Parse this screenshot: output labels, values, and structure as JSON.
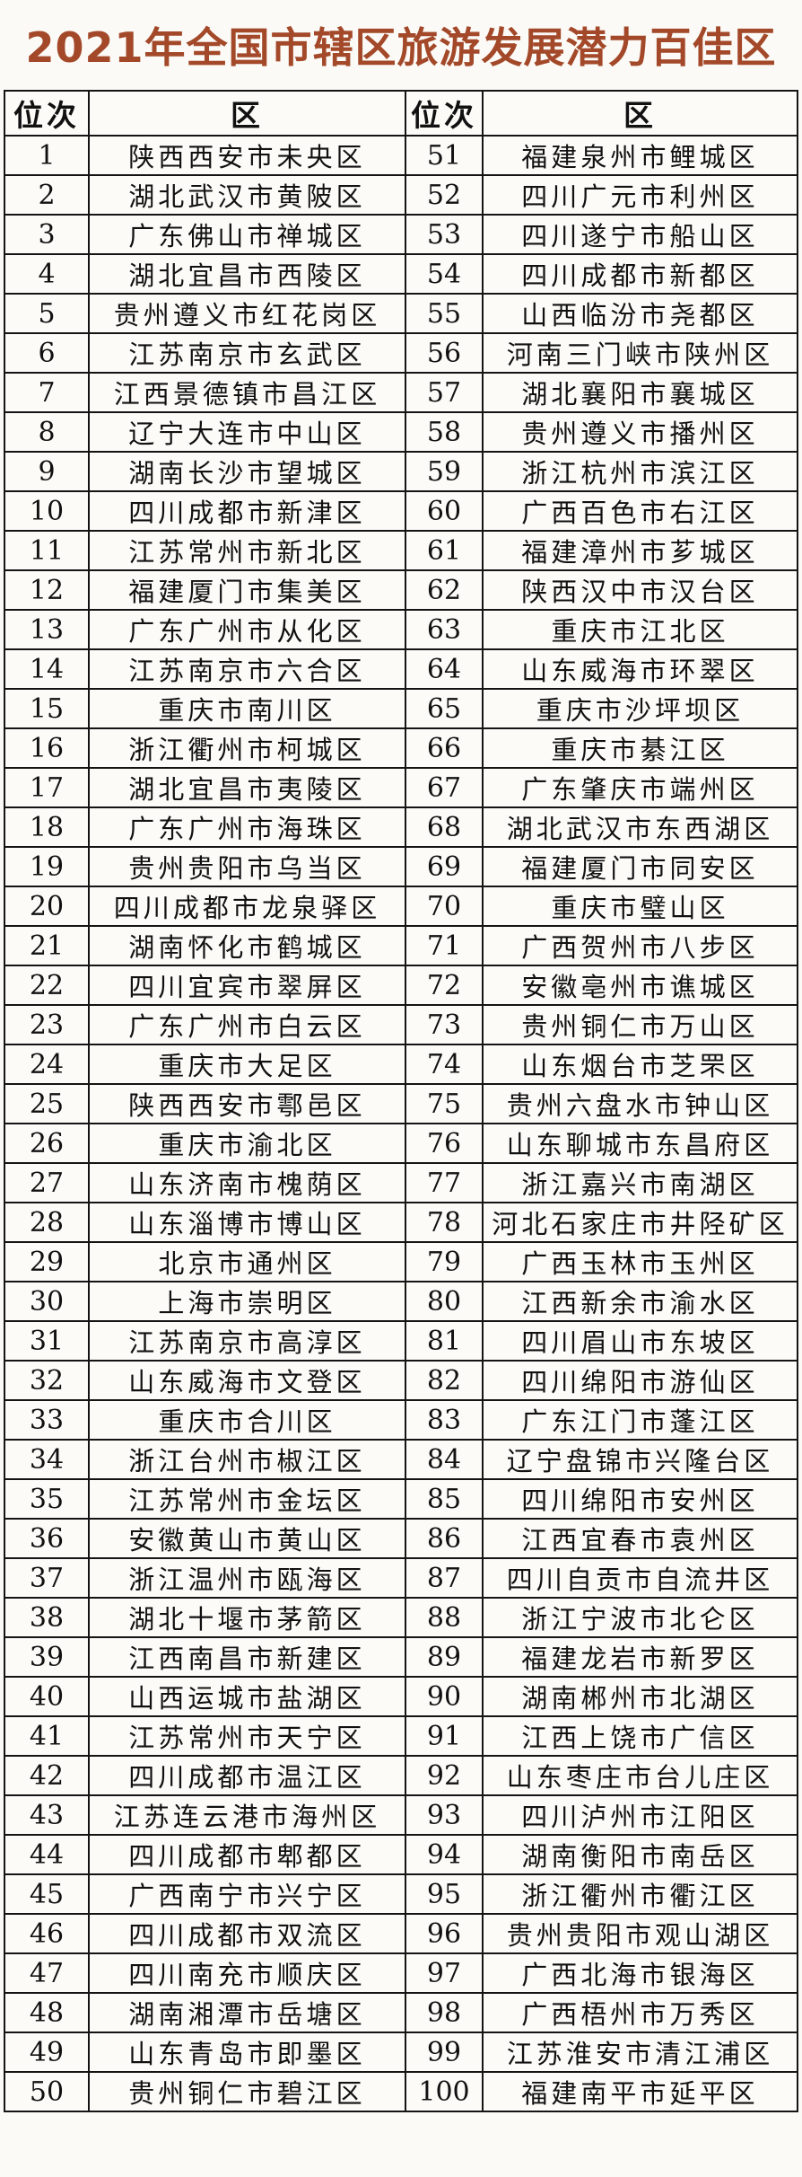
{
  "title": "2021年全国市辖区旅游发展潜力百佳区",
  "colors": {
    "title_text": "#a3492a",
    "border": "#141414",
    "background": "#fbfaf6"
  },
  "table": {
    "headers": [
      "位次",
      "区",
      "位次",
      "区"
    ],
    "rows": [
      {
        "rank_left": "1",
        "district_left": "陕西西安市未央区",
        "rank_right": "51",
        "district_right": "福建泉州市鲤城区"
      },
      {
        "rank_left": "2",
        "district_left": "湖北武汉市黄陂区",
        "rank_right": "52",
        "district_right": "四川广元市利州区"
      },
      {
        "rank_left": "3",
        "district_left": "广东佛山市禅城区",
        "rank_right": "53",
        "district_right": "四川遂宁市船山区"
      },
      {
        "rank_left": "4",
        "district_left": "湖北宜昌市西陵区",
        "rank_right": "54",
        "district_right": "四川成都市新都区"
      },
      {
        "rank_left": "5",
        "district_left": "贵州遵义市红花岗区",
        "rank_right": "55",
        "district_right": "山西临汾市尧都区"
      },
      {
        "rank_left": "6",
        "district_left": "江苏南京市玄武区",
        "rank_right": "56",
        "district_right": "河南三门峡市陕州区"
      },
      {
        "rank_left": "7",
        "district_left": "江西景德镇市昌江区",
        "rank_right": "57",
        "district_right": "湖北襄阳市襄城区"
      },
      {
        "rank_left": "8",
        "district_left": "辽宁大连市中山区",
        "rank_right": "58",
        "district_right": "贵州遵义市播州区"
      },
      {
        "rank_left": "9",
        "district_left": "湖南长沙市望城区",
        "rank_right": "59",
        "district_right": "浙江杭州市滨江区"
      },
      {
        "rank_left": "10",
        "district_left": "四川成都市新津区",
        "rank_right": "60",
        "district_right": "广西百色市右江区"
      },
      {
        "rank_left": "11",
        "district_left": "江苏常州市新北区",
        "rank_right": "61",
        "district_right": "福建漳州市芗城区"
      },
      {
        "rank_left": "12",
        "district_left": "福建厦门市集美区",
        "rank_right": "62",
        "district_right": "陕西汉中市汉台区"
      },
      {
        "rank_left": "13",
        "district_left": "广东广州市从化区",
        "rank_right": "63",
        "district_right": "重庆市江北区"
      },
      {
        "rank_left": "14",
        "district_left": "江苏南京市六合区",
        "rank_right": "64",
        "district_right": "山东威海市环翠区"
      },
      {
        "rank_left": "15",
        "district_left": "重庆市南川区",
        "rank_right": "65",
        "district_right": "重庆市沙坪坝区"
      },
      {
        "rank_left": "16",
        "district_left": "浙江衢州市柯城区",
        "rank_right": "66",
        "district_right": "重庆市綦江区"
      },
      {
        "rank_left": "17",
        "district_left": "湖北宜昌市夷陵区",
        "rank_right": "67",
        "district_right": "广东肇庆市端州区"
      },
      {
        "rank_left": "18",
        "district_left": "广东广州市海珠区",
        "rank_right": "68",
        "district_right": "湖北武汉市东西湖区"
      },
      {
        "rank_left": "19",
        "district_left": "贵州贵阳市乌当区",
        "rank_right": "69",
        "district_right": "福建厦门市同安区"
      },
      {
        "rank_left": "20",
        "district_left": "四川成都市龙泉驿区",
        "rank_right": "70",
        "district_right": "重庆市璧山区"
      },
      {
        "rank_left": "21",
        "district_left": "湖南怀化市鹤城区",
        "rank_right": "71",
        "district_right": "广西贺州市八步区"
      },
      {
        "rank_left": "22",
        "district_left": "四川宜宾市翠屏区",
        "rank_right": "72",
        "district_right": "安徽亳州市谯城区"
      },
      {
        "rank_left": "23",
        "district_left": "广东广州市白云区",
        "rank_right": "73",
        "district_right": "贵州铜仁市万山区"
      },
      {
        "rank_left": "24",
        "district_left": "重庆市大足区",
        "rank_right": "74",
        "district_right": "山东烟台市芝罘区"
      },
      {
        "rank_left": "25",
        "district_left": "陕西西安市鄠邑区",
        "rank_right": "75",
        "district_right": "贵州六盘水市钟山区"
      },
      {
        "rank_left": "26",
        "district_left": "重庆市渝北区",
        "rank_right": "76",
        "district_right": "山东聊城市东昌府区"
      },
      {
        "rank_left": "27",
        "district_left": "山东济南市槐荫区",
        "rank_right": "77",
        "district_right": "浙江嘉兴市南湖区"
      },
      {
        "rank_left": "28",
        "district_left": "山东淄博市博山区",
        "rank_right": "78",
        "district_right": "河北石家庄市井陉矿区"
      },
      {
        "rank_left": "29",
        "district_left": "北京市通州区",
        "rank_right": "79",
        "district_right": "广西玉林市玉州区"
      },
      {
        "rank_left": "30",
        "district_left": "上海市崇明区",
        "rank_right": "80",
        "district_right": "江西新余市渝水区"
      },
      {
        "rank_left": "31",
        "district_left": "江苏南京市高淳区",
        "rank_right": "81",
        "district_right": "四川眉山市东坡区"
      },
      {
        "rank_left": "32",
        "district_left": "山东威海市文登区",
        "rank_right": "82",
        "district_right": "四川绵阳市游仙区"
      },
      {
        "rank_left": "33",
        "district_left": "重庆市合川区",
        "rank_right": "83",
        "district_right": "广东江门市蓬江区"
      },
      {
        "rank_left": "34",
        "district_left": "浙江台州市椒江区",
        "rank_right": "84",
        "district_right": "辽宁盘锦市兴隆台区"
      },
      {
        "rank_left": "35",
        "district_left": "江苏常州市金坛区",
        "rank_right": "85",
        "district_right": "四川绵阳市安州区"
      },
      {
        "rank_left": "36",
        "district_left": "安徽黄山市黄山区",
        "rank_right": "86",
        "district_right": "江西宜春市袁州区"
      },
      {
        "rank_left": "37",
        "district_left": "浙江温州市瓯海区",
        "rank_right": "87",
        "district_right": "四川自贡市自流井区"
      },
      {
        "rank_left": "38",
        "district_left": "湖北十堰市茅箭区",
        "rank_right": "88",
        "district_right": "浙江宁波市北仑区"
      },
      {
        "rank_left": "39",
        "district_left": "江西南昌市新建区",
        "rank_right": "89",
        "district_right": "福建龙岩市新罗区"
      },
      {
        "rank_left": "40",
        "district_left": "山西运城市盐湖区",
        "rank_right": "90",
        "district_right": "湖南郴州市北湖区"
      },
      {
        "rank_left": "41",
        "district_left": "江苏常州市天宁区",
        "rank_right": "91",
        "district_right": "江西上饶市广信区"
      },
      {
        "rank_left": "42",
        "district_left": "四川成都市温江区",
        "rank_right": "92",
        "district_right": "山东枣庄市台儿庄区"
      },
      {
        "rank_left": "43",
        "district_left": "江苏连云港市海州区",
        "rank_right": "93",
        "district_right": "四川泸州市江阳区"
      },
      {
        "rank_left": "44",
        "district_left": "四川成都市郫都区",
        "rank_right": "94",
        "district_right": "湖南衡阳市南岳区"
      },
      {
        "rank_left": "45",
        "district_left": "广西南宁市兴宁区",
        "rank_right": "95",
        "district_right": "浙江衢州市衢江区"
      },
      {
        "rank_left": "46",
        "district_left": "四川成都市双流区",
        "rank_right": "96",
        "district_right": "贵州贵阳市观山湖区"
      },
      {
        "rank_left": "47",
        "district_left": "四川南充市顺庆区",
        "rank_right": "97",
        "district_right": "广西北海市银海区"
      },
      {
        "rank_left": "48",
        "district_left": "湖南湘潭市岳塘区",
        "rank_right": "98",
        "district_right": "广西梧州市万秀区"
      },
      {
        "rank_left": "49",
        "district_left": "山东青岛市即墨区",
        "rank_right": "99",
        "district_right": "江苏淮安市清江浦区"
      },
      {
        "rank_left": "50",
        "district_left": "贵州铜仁市碧江区",
        "rank_right": "100",
        "district_right": "福建南平市延平区"
      }
    ]
  }
}
